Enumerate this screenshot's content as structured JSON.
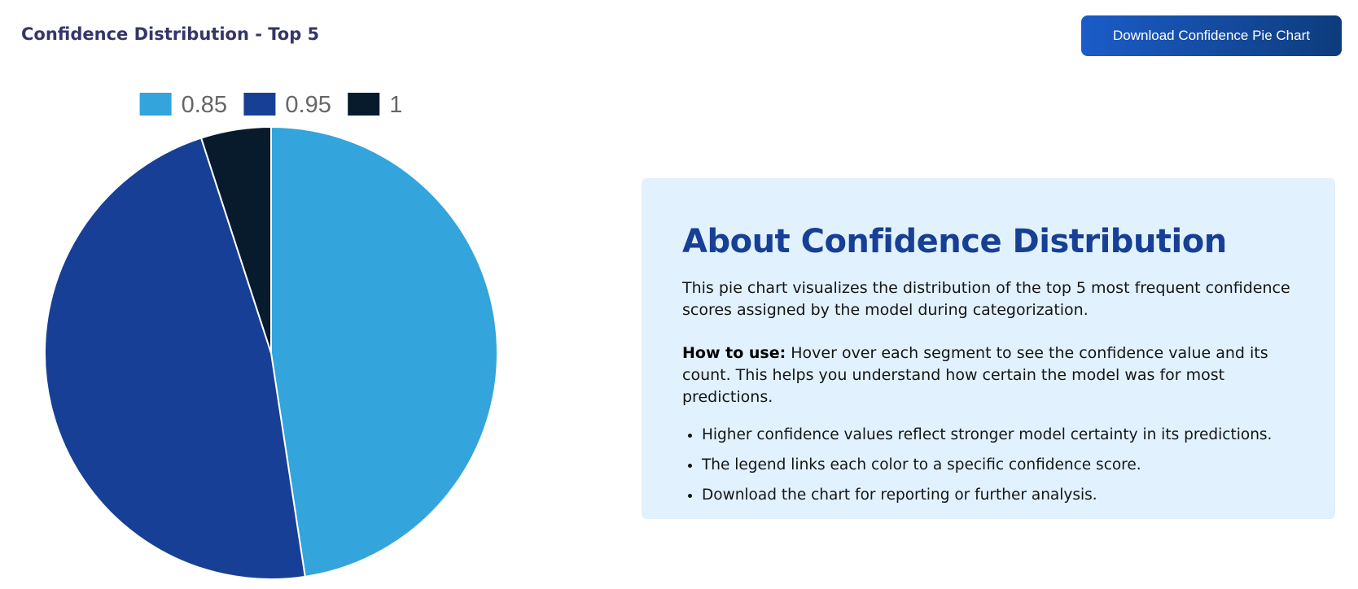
{
  "header": {
    "title": "Confidence Distribution - Top 5",
    "download_label": "Download Confidence Pie Chart"
  },
  "chart_data": {
    "type": "pie",
    "title": "",
    "legend_position": "top",
    "categories": [
      "0.85",
      "0.95",
      "1"
    ],
    "values": [
      47.6,
      47.4,
      5.0
    ],
    "colors": [
      "#33a4dc",
      "#173f95",
      "#071b2c"
    ]
  },
  "info": {
    "title": "About Confidence Distribution",
    "description": "This pie chart visualizes the distribution of the top 5 most frequent confidence scores assigned by the model during categorization.",
    "how_to_use_label": "How to use:",
    "how_to_use_text": " Hover over each segment to see the confidence value and its count. This helps you understand how certain the model was for most predictions.",
    "bullets": [
      "Higher confidence values reflect stronger model certainty in its predictions.",
      "The legend links each color to a specific confidence score.",
      "Download the chart for reporting or further analysis."
    ]
  }
}
